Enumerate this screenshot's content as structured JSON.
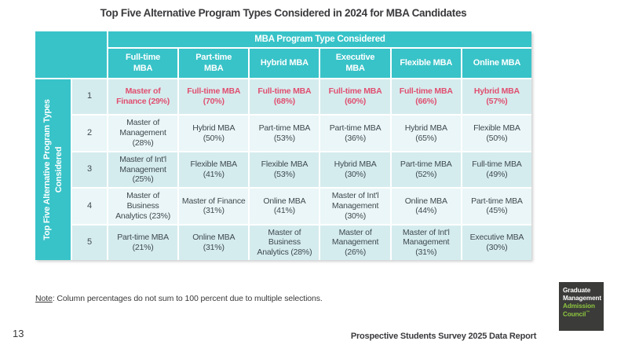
{
  "title": "Top Five Alternative Program Types Considered in 2024 for MBA Candidates",
  "table": {
    "column_group_header": "MBA Program Type Considered",
    "row_group_header": "Top Five Alternative Program Types Considered",
    "columns": [
      "Full-time\nMBA",
      "Part-time\nMBA",
      "Hybrid MBA",
      "Executive\nMBA",
      "Flexible MBA",
      "Online MBA"
    ],
    "rows": [
      {
        "rank": "1",
        "highlight": true,
        "cells": [
          "Master of Finance (29%)",
          "Full-time MBA (70%)",
          "Full-time MBA (68%)",
          "Full-time MBA (60%)",
          "Full-time MBA (66%)",
          "Hybrid MBA (57%)"
        ]
      },
      {
        "rank": "2",
        "highlight": false,
        "cells": [
          "Master of Management (28%)",
          "Hybrid MBA (50%)",
          "Part-time MBA (53%)",
          "Part-time MBA (36%)",
          "Hybrid MBA (65%)",
          "Flexible MBA (50%)"
        ]
      },
      {
        "rank": "3",
        "highlight": false,
        "cells": [
          "Master of Int'l Management (25%)",
          "Flexible MBA (41%)",
          "Flexible MBA (53%)",
          "Hybrid MBA (30%)",
          "Part-time MBA (52%)",
          "Full-time MBA (49%)"
        ]
      },
      {
        "rank": "4",
        "highlight": false,
        "cells": [
          "Master of Business Analytics (23%)",
          "Master of Finance (31%)",
          "Online MBA (41%)",
          "Master of Int'l Management (30%)",
          "Online MBA (44%)",
          "Part-time MBA (45%)"
        ]
      },
      {
        "rank": "5",
        "highlight": false,
        "cells": [
          "Part-time MBA (21%)",
          "Online MBA (31%)",
          "Master of Business Analytics (28%)",
          "Master of Management (26%)",
          "Master of Int'l Management (31%)",
          "Executive MBA (30%)"
        ]
      }
    ]
  },
  "note": {
    "label": "Note",
    "text": ": Column percentages do not sum to 100 percent due to multiple selections."
  },
  "footer": {
    "page_number": "13",
    "report_title": "Prospective Students Survey 2025 Data Report"
  },
  "logo": {
    "line1": "Graduate",
    "line2": "Management",
    "line3": "Admission",
    "line4": "Council",
    "trademark": "™"
  },
  "colors": {
    "teal": "#38c3c8",
    "row_odd": "#d5ecee",
    "row_even": "#eaf6f7",
    "highlight_text": "#e04f70",
    "body_text": "#3f4a50",
    "logo_bg": "#3b3b39",
    "logo_green": "#8dc63f"
  }
}
